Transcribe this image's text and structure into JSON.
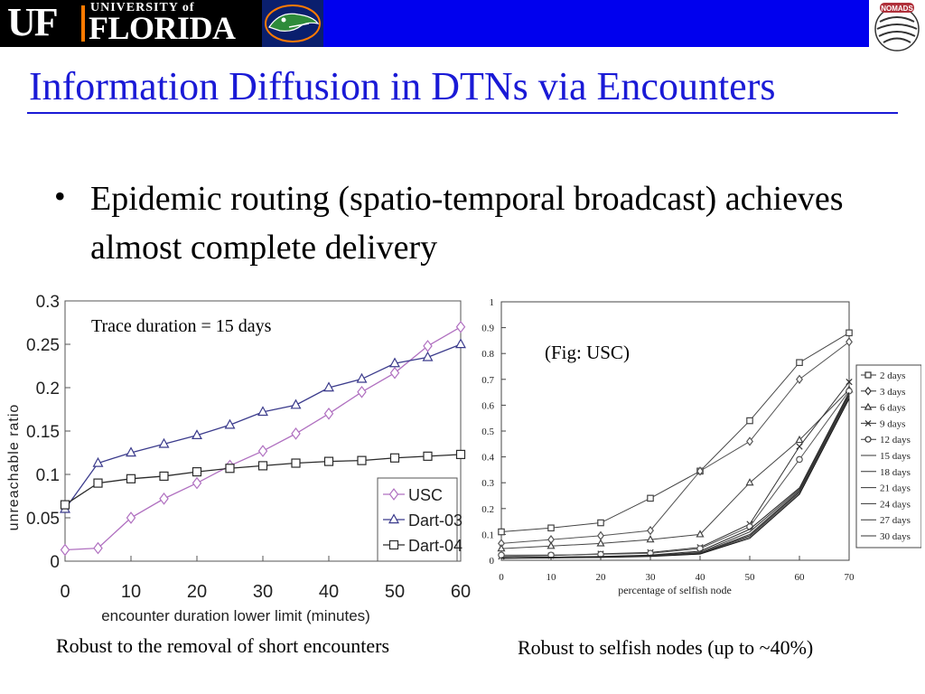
{
  "header": {
    "uf_letters": "UF",
    "university_text": "UNIVERSITY of",
    "florida_text": "FLORIDA",
    "nomads_text": "NOMADS",
    "colors": {
      "banner": "#0000ee",
      "logo_bg": "#000000",
      "accent": "#ff7a00"
    }
  },
  "title": "Information Diffusion in DTNs via Encounters",
  "bullet": {
    "symbol": "•",
    "text": "Epidemic routing (spatio-temporal broadcast) achieves almost complete delivery"
  },
  "captions": {
    "left": "Robust to the removal of short encounters",
    "right": "Robust to selfish nodes (up to ~40%)"
  },
  "chart_data": [
    {
      "type": "line",
      "annotation": "Trace duration = 15 days",
      "xlabel": "encounter duration lower limit (minutes)",
      "ylabel": "unreachable ratio",
      "xlim": [
        0,
        60
      ],
      "ylim": [
        0,
        0.3
      ],
      "xticks": [
        "0",
        "10",
        "20",
        "30",
        "40",
        "50",
        "60"
      ],
      "yticks": [
        "0",
        "0.05",
        "0.1",
        "0.15",
        "0.2",
        "0.25",
        "0.3"
      ],
      "legend_position": "bottom-right",
      "x": [
        0,
        5,
        10,
        15,
        20,
        25,
        30,
        35,
        40,
        45,
        50,
        55,
        60
      ],
      "series": [
        {
          "name": "USC",
          "marker": "diamond",
          "color": "#b070c0",
          "values": [
            0.013,
            0.015,
            0.05,
            0.072,
            0.09,
            0.11,
            0.127,
            0.147,
            0.17,
            0.195,
            0.217,
            0.248,
            0.27
          ]
        },
        {
          "name": "Dart-03",
          "marker": "triangle",
          "color": "#3b3b8c",
          "values": [
            0.06,
            0.113,
            0.125,
            0.135,
            0.145,
            0.157,
            0.172,
            0.18,
            0.2,
            0.21,
            0.228,
            0.235,
            0.25
          ]
        },
        {
          "name": "Dart-04",
          "marker": "square",
          "color": "#2a2a2a",
          "values": [
            0.065,
            0.09,
            0.095,
            0.098,
            0.103,
            0.107,
            0.11,
            0.113,
            0.115,
            0.116,
            0.119,
            0.121,
            0.123
          ]
        }
      ]
    },
    {
      "type": "line",
      "annotation": "(Fig: USC)",
      "xlabel": "percentage of selfish node",
      "ylabel": "",
      "xlim": [
        0,
        70
      ],
      "ylim": [
        0,
        1
      ],
      "xticks": [
        "0",
        "10",
        "20",
        "30",
        "40",
        "50",
        "60",
        "70"
      ],
      "yticks": [
        "0",
        "0.1",
        "0.2",
        "0.3",
        "0.4",
        "0.5",
        "0.6",
        "0.7",
        "0.8",
        "0.9",
        "1"
      ],
      "legend_position": "right",
      "x": [
        0,
        10,
        20,
        30,
        40,
        50,
        60,
        70
      ],
      "series": [
        {
          "name": "2 days",
          "marker": "square",
          "values": [
            0.11,
            0.125,
            0.145,
            0.24,
            0.345,
            0.54,
            0.765,
            0.88
          ]
        },
        {
          "name": "3 days",
          "marker": "diamond",
          "values": [
            0.065,
            0.08,
            0.095,
            0.115,
            0.345,
            0.46,
            0.7,
            0.845
          ]
        },
        {
          "name": "6 days",
          "marker": "triangle",
          "values": [
            0.045,
            0.055,
            0.065,
            0.08,
            0.1,
            0.3,
            0.465,
            0.66
          ]
        },
        {
          "name": "9 days",
          "marker": "x",
          "values": [
            0.015,
            0.018,
            0.025,
            0.03,
            0.05,
            0.14,
            0.44,
            0.69
          ]
        },
        {
          "name": "12 days",
          "marker": "circle",
          "values": [
            0.02,
            0.02,
            0.023,
            0.027,
            0.045,
            0.13,
            0.39,
            0.655
          ]
        },
        {
          "name": "15 days",
          "marker": "none",
          "values": [
            0.01,
            0.012,
            0.015,
            0.02,
            0.035,
            0.12,
            0.28,
            0.65
          ]
        },
        {
          "name": "18 days",
          "marker": "none",
          "values": [
            0.01,
            0.012,
            0.014,
            0.019,
            0.03,
            0.11,
            0.275,
            0.645
          ]
        },
        {
          "name": "21 days",
          "marker": "none",
          "values": [
            0.01,
            0.011,
            0.013,
            0.018,
            0.028,
            0.1,
            0.27,
            0.64
          ]
        },
        {
          "name": "24 days",
          "marker": "none",
          "values": [
            0.009,
            0.01,
            0.012,
            0.017,
            0.026,
            0.095,
            0.265,
            0.635
          ]
        },
        {
          "name": "27 days",
          "marker": "none",
          "values": [
            0.008,
            0.01,
            0.012,
            0.016,
            0.025,
            0.09,
            0.26,
            0.63
          ]
        },
        {
          "name": "30 days",
          "marker": "none",
          "values": [
            0.008,
            0.009,
            0.011,
            0.015,
            0.024,
            0.085,
            0.255,
            0.625
          ]
        }
      ]
    }
  ]
}
